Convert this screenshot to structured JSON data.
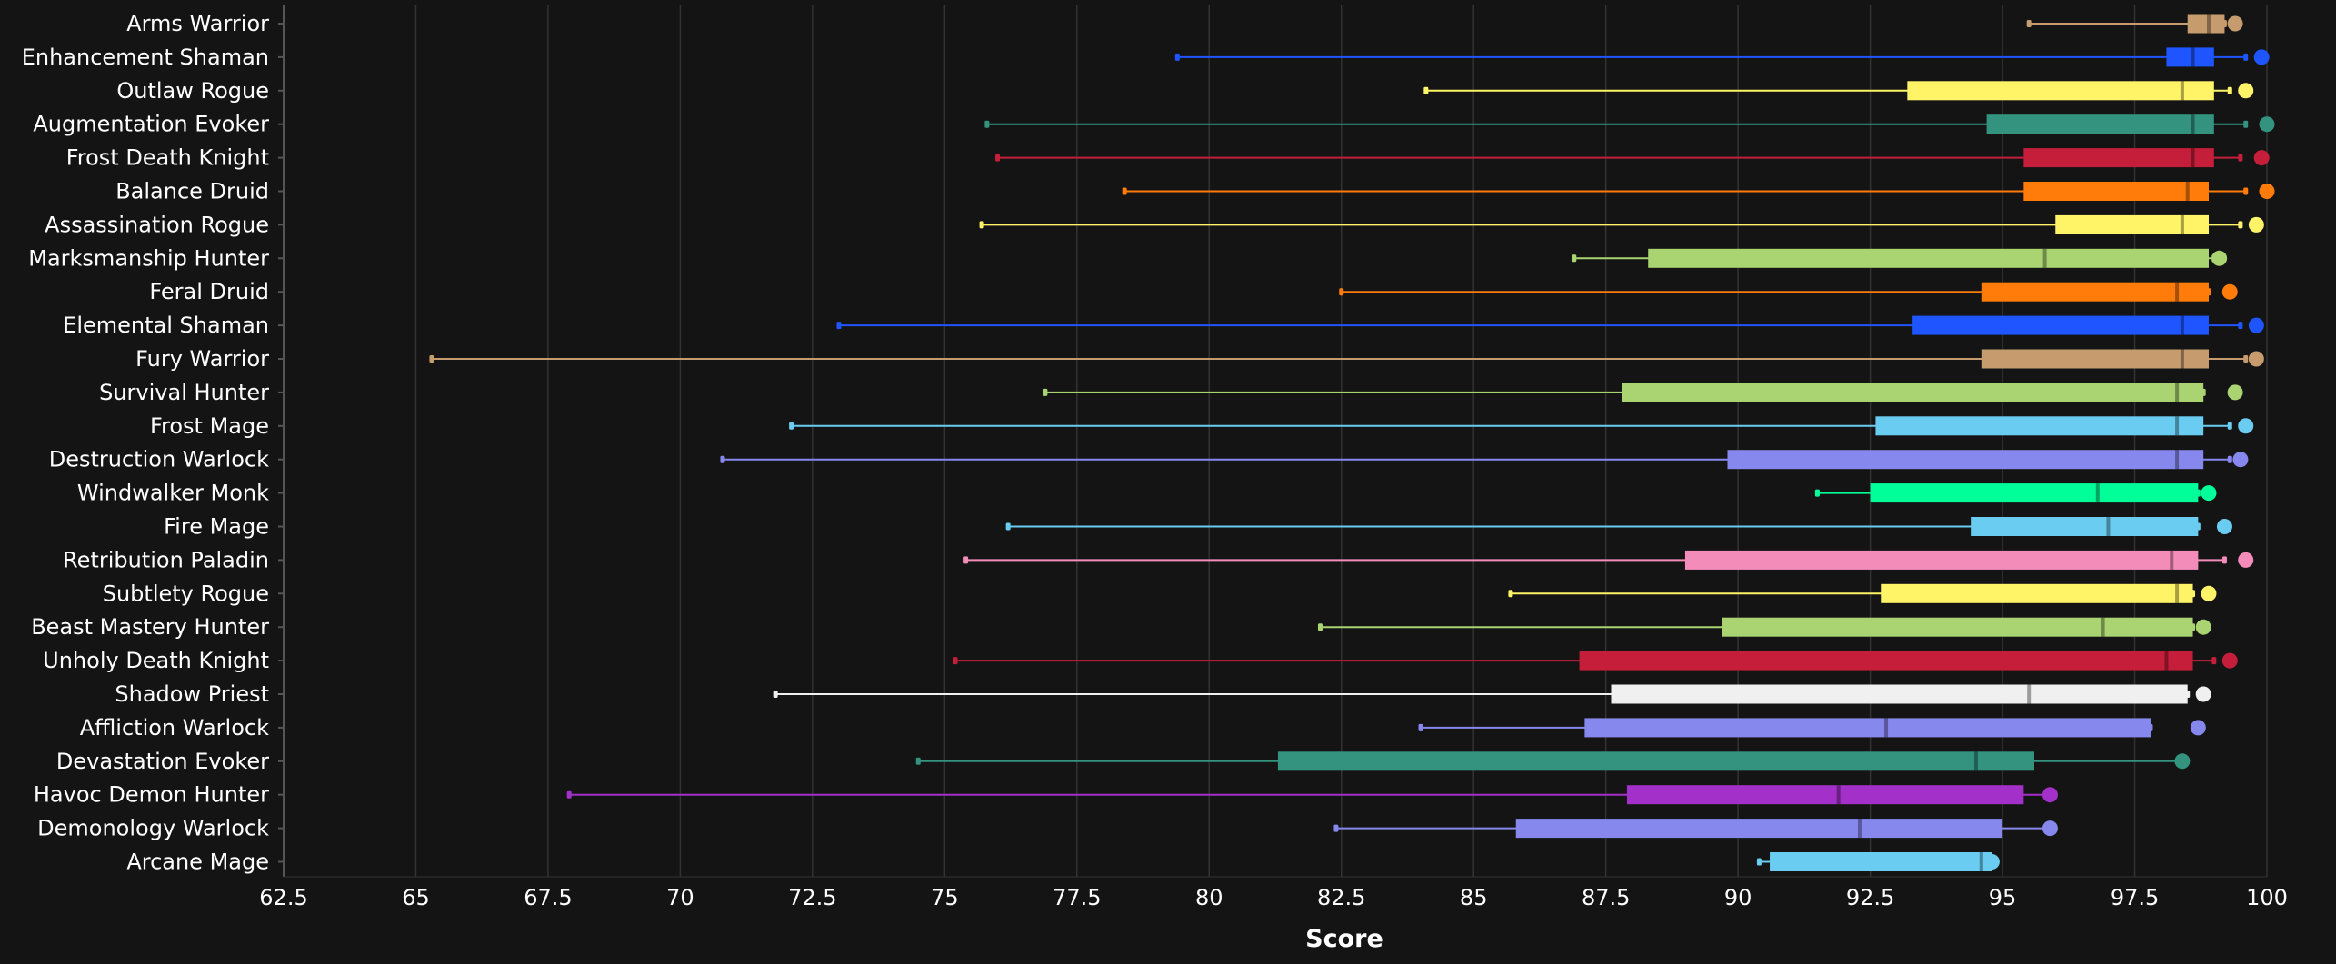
{
  "chart_data": {
    "type": "boxplot",
    "orientation": "horizontal",
    "title": "",
    "xlabel": "Score",
    "ylabel": "",
    "xlim": [
      62.5,
      100
    ],
    "x_ticks": [
      62.5,
      65,
      67.5,
      70,
      72.5,
      75,
      77.5,
      80,
      82.5,
      85,
      87.5,
      90,
      92.5,
      95,
      97.5,
      100
    ],
    "x_tick_labels": [
      "62.5",
      "65",
      "67.5",
      "70",
      "72.5",
      "75",
      "77.5",
      "80",
      "82.5",
      "85",
      "87.5",
      "90",
      "92.5",
      "95",
      "97.5",
      "100"
    ],
    "grid": "vertical",
    "background": "#141414",
    "series": [
      {
        "category": "Arms Warrior",
        "color": "#C69B6D",
        "min": 95.5,
        "q1": 98.5,
        "median": 98.9,
        "q3": 99.2,
        "max": 99.2,
        "top": 99.4
      },
      {
        "category": "Enhancement Shaman",
        "color": "#1F55FF",
        "min": 79.4,
        "q1": 98.1,
        "median": 98.6,
        "q3": 99.0,
        "max": 99.6,
        "top": 99.9
      },
      {
        "category": "Outlaw Rogue",
        "color": "#FFF468",
        "min": 84.1,
        "q1": 93.2,
        "median": 98.4,
        "q3": 99.0,
        "max": 99.3,
        "top": 99.6
      },
      {
        "category": "Augmentation Evoker",
        "color": "#33937F",
        "min": 75.8,
        "q1": 94.7,
        "median": 98.6,
        "q3": 99.0,
        "max": 99.6,
        "top": 100.0
      },
      {
        "category": "Frost Death Knight",
        "color": "#C41E3A",
        "min": 76.0,
        "q1": 95.4,
        "median": 98.6,
        "q3": 99.0,
        "max": 99.5,
        "top": 99.9
      },
      {
        "category": "Balance Druid",
        "color": "#FF7C0A",
        "min": 78.4,
        "q1": 95.4,
        "median": 98.5,
        "q3": 98.9,
        "max": 99.6,
        "top": 100.0
      },
      {
        "category": "Assassination Rogue",
        "color": "#FFF468",
        "min": 75.7,
        "q1": 96.0,
        "median": 98.4,
        "q3": 98.9,
        "max": 99.5,
        "top": 99.8
      },
      {
        "category": "Marksmanship Hunter",
        "color": "#AAD372",
        "min": 86.9,
        "q1": 88.3,
        "median": 95.8,
        "q3": 98.9,
        "max": 99.0,
        "top": 99.1
      },
      {
        "category": "Feral Druid",
        "color": "#FF7C0A",
        "min": 82.5,
        "q1": 94.6,
        "median": 98.3,
        "q3": 98.9,
        "max": 98.9,
        "top": 99.3
      },
      {
        "category": "Elemental Shaman",
        "color": "#1F55FF",
        "min": 73.0,
        "q1": 93.3,
        "median": 98.4,
        "q3": 98.9,
        "max": 99.5,
        "top": 99.8
      },
      {
        "category": "Fury Warrior",
        "color": "#C69B6D",
        "min": 65.3,
        "q1": 94.6,
        "median": 98.4,
        "q3": 98.9,
        "max": 99.6,
        "top": 99.8
      },
      {
        "category": "Survival Hunter",
        "color": "#AAD372",
        "min": 76.9,
        "q1": 87.8,
        "median": 98.3,
        "q3": 98.8,
        "max": 98.8,
        "top": 99.4
      },
      {
        "category": "Frost Mage",
        "color": "#69CCF0",
        "min": 72.1,
        "q1": 92.6,
        "median": 98.3,
        "q3": 98.8,
        "max": 99.3,
        "top": 99.6
      },
      {
        "category": "Destruction Warlock",
        "color": "#8788EE",
        "min": 70.8,
        "q1": 89.8,
        "median": 98.3,
        "q3": 98.8,
        "max": 99.3,
        "top": 99.5
      },
      {
        "category": "Windwalker Monk",
        "color": "#00FF98",
        "min": 91.5,
        "q1": 92.5,
        "median": 96.8,
        "q3": 98.7,
        "max": 98.7,
        "top": 98.9
      },
      {
        "category": "Fire Mage",
        "color": "#69CCF0",
        "min": 76.2,
        "q1": 94.4,
        "median": 97.0,
        "q3": 98.7,
        "max": 98.7,
        "top": 99.2
      },
      {
        "category": "Retribution Paladin",
        "color": "#F48CBA",
        "min": 75.4,
        "q1": 89.0,
        "median": 98.2,
        "q3": 98.7,
        "max": 99.2,
        "top": 99.6
      },
      {
        "category": "Subtlety Rogue",
        "color": "#FFF468",
        "min": 85.7,
        "q1": 92.7,
        "median": 98.3,
        "q3": 98.6,
        "max": 98.6,
        "top": 98.9
      },
      {
        "category": "Beast Mastery Hunter",
        "color": "#AAD372",
        "min": 82.1,
        "q1": 89.7,
        "median": 96.9,
        "q3": 98.6,
        "max": 98.6,
        "top": 98.8
      },
      {
        "category": "Unholy Death Knight",
        "color": "#C41E3A",
        "min": 75.2,
        "q1": 87.0,
        "median": 98.1,
        "q3": 98.6,
        "max": 99.0,
        "top": 99.3
      },
      {
        "category": "Shadow Priest",
        "color": "#F0F0F0",
        "min": 71.8,
        "q1": 87.6,
        "median": 95.5,
        "q3": 98.5,
        "max": 98.5,
        "top": 98.8
      },
      {
        "category": "Affliction Warlock",
        "color": "#8788EE",
        "min": 84.0,
        "q1": 87.1,
        "median": 92.8,
        "q3": 97.8,
        "max": 97.8,
        "top": 98.7
      },
      {
        "category": "Devastation Evoker",
        "color": "#33937F",
        "min": 74.5,
        "q1": 81.3,
        "median": 94.5,
        "q3": 95.6,
        "max": 98.4,
        "top": 98.4
      },
      {
        "category": "Havoc Demon Hunter",
        "color": "#A330C9",
        "min": 67.9,
        "q1": 87.9,
        "median": 91.9,
        "q3": 95.4,
        "max": 95.9,
        "top": 95.9
      },
      {
        "category": "Demonology Warlock",
        "color": "#8788EE",
        "min": 82.4,
        "q1": 85.8,
        "median": 92.3,
        "q3": 95.0,
        "max": 95.9,
        "top": 95.9
      },
      {
        "category": "Arcane Mage",
        "color": "#69CCF0",
        "min": 90.4,
        "q1": 90.6,
        "median": 94.6,
        "q3": 94.8,
        "max": 94.8,
        "top": 94.8
      }
    ]
  }
}
